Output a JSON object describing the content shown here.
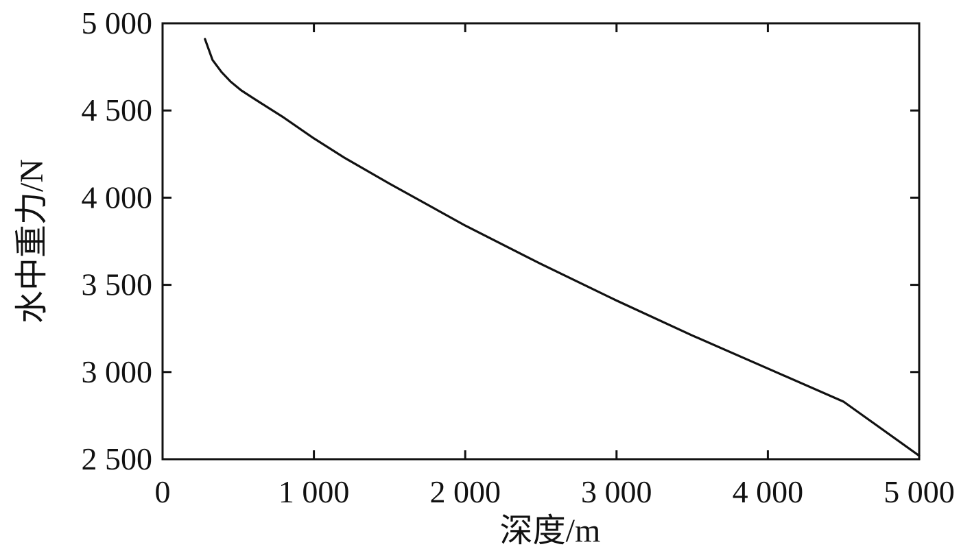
{
  "chart_data": {
    "type": "line",
    "title": "",
    "xlabel": "深度/m",
    "ylabel": "水中重力/N",
    "xlim": [
      0,
      5000
    ],
    "ylim": [
      2500,
      5000
    ],
    "xticks": [
      0,
      1000,
      2000,
      3000,
      4000,
      5000
    ],
    "xtick_labels": [
      "0",
      "1 000",
      "2 000",
      "3 000",
      "4 000",
      "5 000"
    ],
    "yticks": [
      2500,
      3000,
      3500,
      4000,
      4500,
      5000
    ],
    "ytick_labels": [
      "2 500",
      "3 000",
      "3 500",
      "4 000",
      "4 500",
      "5 000"
    ],
    "grid": false,
    "legend": "none",
    "line_color": "#111111",
    "series": [
      {
        "x": [
          280,
          330,
          390,
          450,
          520,
          600,
          700,
          800,
          1000,
          1200,
          1500,
          2000,
          2500,
          3000,
          3500,
          4000,
          4500,
          5000
        ],
        "y": [
          4910,
          4790,
          4720,
          4665,
          4615,
          4570,
          4515,
          4460,
          4340,
          4230,
          4080,
          3840,
          3620,
          3410,
          3210,
          3020,
          2830,
          2520
        ]
      }
    ]
  }
}
